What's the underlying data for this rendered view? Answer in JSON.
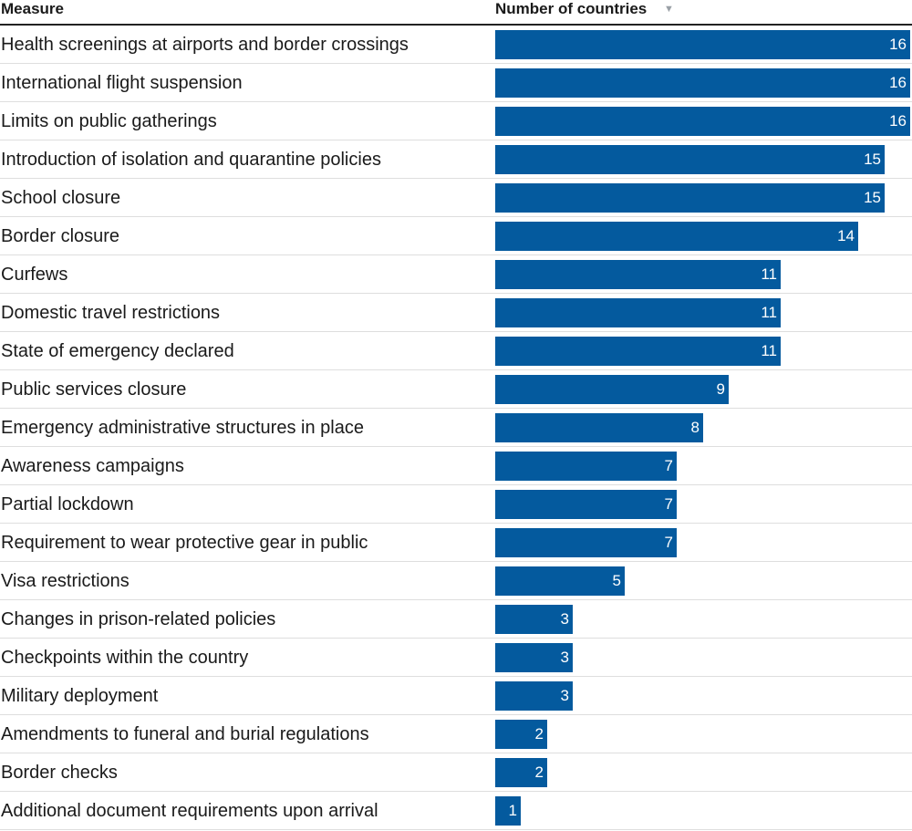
{
  "table": {
    "header_measure": "Measure",
    "header_count": "Number of countries",
    "sort_icon": "sort-descending-icon"
  },
  "chart_data": {
    "type": "bar",
    "orientation": "horizontal",
    "title": "",
    "xlabel": "Number of countries",
    "ylabel": "Measure",
    "xlim": [
      0,
      16
    ],
    "categories": [
      "Health screenings at airports and border crossings",
      "International flight suspension",
      "Limits on public gatherings",
      "Introduction of isolation and quarantine policies",
      "School closure",
      "Border closure",
      "Curfews",
      "Domestic travel restrictions",
      "State of emergency declared",
      "Public services closure",
      "Emergency administrative structures in place",
      "Awareness campaigns",
      "Partial lockdown",
      "Requirement to wear protective gear in public",
      "Visa restrictions",
      "Changes in prison-related policies",
      "Checkpoints within the country",
      "Military deployment",
      "Amendments to funeral and burial regulations",
      "Border checks",
      "Additional document requirements upon arrival"
    ],
    "values": [
      16,
      16,
      16,
      15,
      15,
      14,
      11,
      11,
      11,
      9,
      8,
      7,
      7,
      7,
      5,
      3,
      3,
      3,
      2,
      2,
      1
    ],
    "bar_color": "#045a9e",
    "value_label_color": "#ffffff",
    "grid": false,
    "legend": "none"
  }
}
